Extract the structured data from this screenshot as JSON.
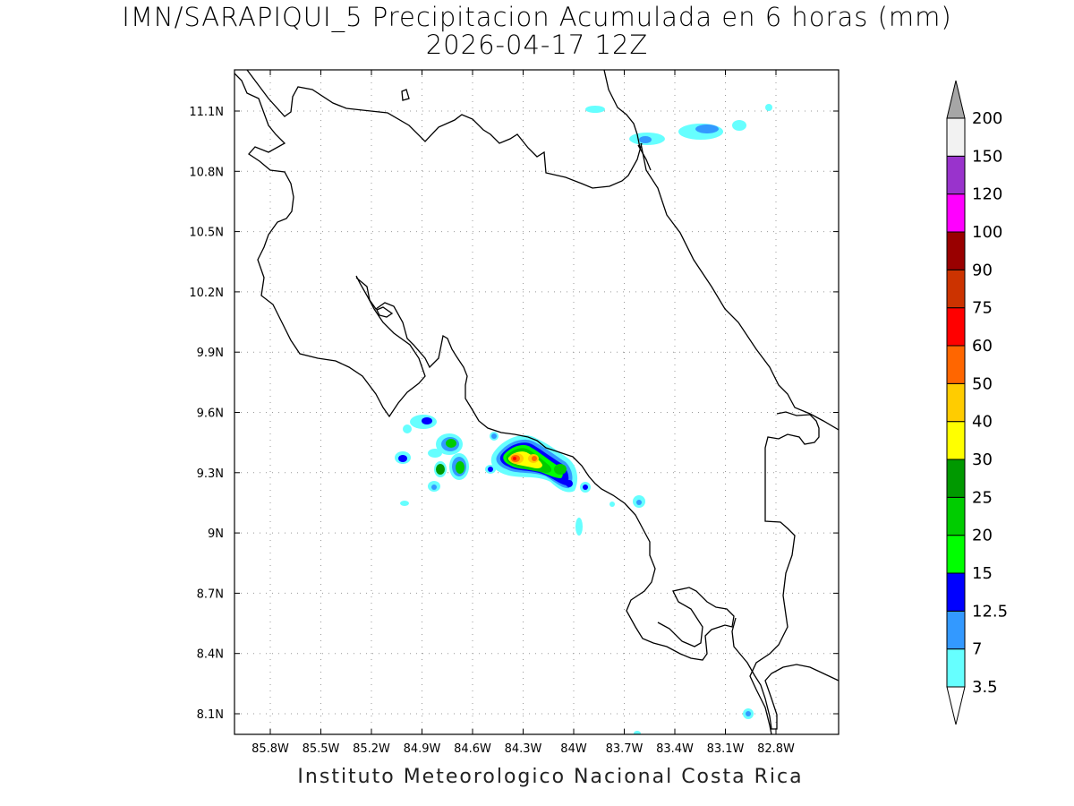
{
  "title": {
    "line1": "IMN/SARAPIQUI_5 Precipitacion Acumulada en 6 horas (mm)",
    "line2": "2026-04-17 12Z"
  },
  "footer": "Instituto Meteorologico Nacional Costa Rica",
  "map": {
    "lat_ticks": [
      "11.1N",
      "10.8N",
      "10.5N",
      "10.2N",
      "9.9N",
      "9.6N",
      "9.3N",
      "9N",
      "8.7N",
      "8.4N",
      "8.1N"
    ],
    "lon_ticks": [
      "85.8W",
      "85.5W",
      "85.2W",
      "84.9W",
      "84.6W",
      "84.3W",
      "84W",
      "83.7W",
      "83.4W",
      "83.1W",
      "82.8W"
    ],
    "grid": "dotted"
  },
  "colorbar": {
    "labels": [
      "3.5",
      "7",
      "12.5",
      "15",
      "20",
      "25",
      "30",
      "40",
      "50",
      "60",
      "75",
      "90",
      "100",
      "120",
      "150",
      "200"
    ],
    "colors": [
      "#ffffff",
      "#66ffff",
      "#3399ff",
      "#0000ff",
      "#00ff00",
      "#00cc00",
      "#009900",
      "#ffff00",
      "#ffcc00",
      "#ff6600",
      "#ff0000",
      "#cc3300",
      "#990000",
      "#ff00ff",
      "#9933cc",
      "#f2f2f2",
      "#a6a6a6"
    ]
  }
}
